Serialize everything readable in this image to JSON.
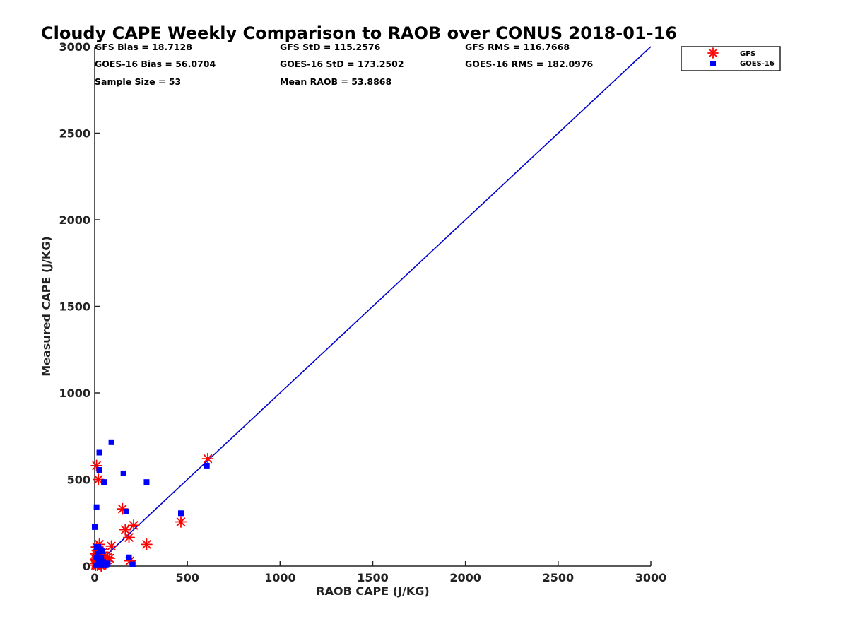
{
  "chart_data": {
    "type": "scatter",
    "title": "Cloudy CAPE Weekly Comparison to RAOB over CONUS 2018-01-16",
    "xlabel": "RAOB CAPE (J/KG)",
    "ylabel": "Measured CAPE (J/KG)",
    "xlim": [
      0,
      3000
    ],
    "ylim": [
      0,
      3000
    ],
    "xticks": [
      0,
      500,
      1000,
      1500,
      2000,
      2500,
      3000
    ],
    "yticks": [
      0,
      500,
      1000,
      1500,
      2000,
      2500,
      3000
    ],
    "grid": false,
    "legend_position": "top-right",
    "stats": [
      [
        "GFS Bias = 18.7128",
        "GFS StD = 115.2576",
        "GFS RMS = 116.7668"
      ],
      [
        "GOES-16 Bias = 56.0704",
        "GOES-16 StD = 173.2502",
        "GOES-16 RMS = 182.0976"
      ],
      [
        "Sample Size = 53",
        "Mean RAOB = 53.8868",
        ""
      ]
    ],
    "reference_line": {
      "x": [
        0,
        3000
      ],
      "y": [
        0,
        3000
      ],
      "color": "#0000cc"
    },
    "series": [
      {
        "name": "GFS",
        "marker": "asterisk",
        "color": "#ff0000",
        "points": [
          [
            10,
            580
          ],
          [
            20,
            500
          ],
          [
            150,
            330
          ],
          [
            165,
            210
          ],
          [
            185,
            165
          ],
          [
            210,
            235
          ],
          [
            280,
            125
          ],
          [
            465,
            255
          ],
          [
            610,
            620
          ],
          [
            90,
            115
          ],
          [
            25,
            125
          ],
          [
            10,
            110
          ],
          [
            5,
            70
          ],
          [
            5,
            40
          ],
          [
            10,
            30
          ],
          [
            5,
            15
          ],
          [
            5,
            5
          ],
          [
            15,
            5
          ],
          [
            25,
            40
          ],
          [
            30,
            15
          ],
          [
            40,
            50
          ],
          [
            50,
            30
          ],
          [
            60,
            15
          ],
          [
            70,
            50
          ],
          [
            80,
            45
          ],
          [
            190,
            30
          ],
          [
            45,
            80
          ],
          [
            35,
            0
          ],
          [
            20,
            60
          ],
          [
            15,
            90
          ]
        ]
      },
      {
        "name": "GOES-16",
        "marker": "square",
        "color": "#0000ff",
        "points": [
          [
            90,
            715
          ],
          [
            25,
            655
          ],
          [
            25,
            555
          ],
          [
            155,
            535
          ],
          [
            50,
            485
          ],
          [
            280,
            485
          ],
          [
            10,
            340
          ],
          [
            170,
            315
          ],
          [
            465,
            305
          ],
          [
            605,
            580
          ],
          [
            0,
            225
          ],
          [
            10,
            110
          ],
          [
            20,
            110
          ],
          [
            30,
            95
          ],
          [
            40,
            85
          ],
          [
            185,
            50
          ],
          [
            205,
            10
          ],
          [
            10,
            50
          ],
          [
            20,
            30
          ],
          [
            30,
            20
          ],
          [
            40,
            10
          ],
          [
            50,
            5
          ],
          [
            60,
            5
          ],
          [
            70,
            15
          ],
          [
            35,
            45
          ],
          [
            15,
            70
          ],
          [
            5,
            5
          ],
          [
            25,
            5
          ],
          [
            45,
            25
          ]
        ]
      }
    ]
  }
}
